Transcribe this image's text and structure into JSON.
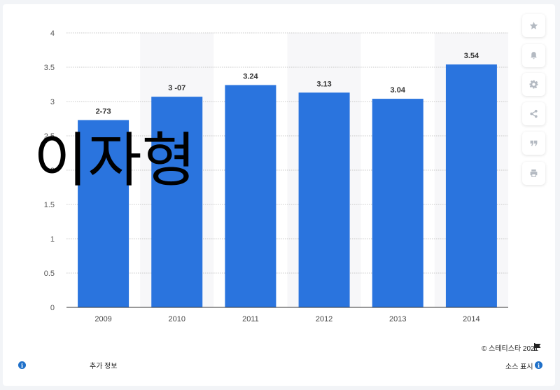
{
  "chart_data": {
    "type": "bar",
    "categories": [
      "2009",
      "2010",
      "2011",
      "2012",
      "2013",
      "2014"
    ],
    "values": [
      2.73,
      3.07,
      3.24,
      3.13,
      3.04,
      3.54
    ],
    "data_labels": [
      "2-73",
      "3 -07",
      "3.24",
      "3.13",
      "3.04",
      "3.54"
    ],
    "y_ticks": [
      "0",
      "0.5",
      "1",
      "1.5",
      "2",
      "2.5",
      "3",
      "3.5",
      "4"
    ],
    "ylim": [
      0,
      4
    ],
    "grid": true,
    "bar_color": "#2a74de",
    "overlay_text": "이자형"
  },
  "toolbar": [
    "star-icon",
    "bell-icon",
    "gear-icon",
    "share-icon",
    "quote-icon",
    "print-icon"
  ],
  "footer": {
    "copyright": "© 스테티스타 2021",
    "more_info": "추가 정보",
    "show_source": "소스 표시"
  },
  "colors": {
    "accent": "#1f70c9",
    "bar": "#2a74de",
    "band": "#f7f7f9"
  }
}
